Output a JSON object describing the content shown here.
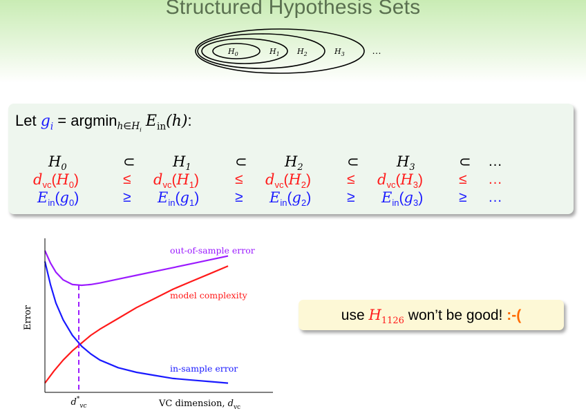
{
  "slide": {
    "title": "Structured Hypothesis Sets"
  },
  "nested_sets": {
    "labels": [
      "H0",
      "H1",
      "H2",
      "H3"
    ],
    "ellipsis": "…"
  },
  "definition": {
    "prefix": "Let",
    "text": "g_i = argmin_{h∈H_i} E_in(h):"
  },
  "chain": {
    "hyp": [
      "H0",
      "H1",
      "H2",
      "H3"
    ],
    "hyp_op": "⊂",
    "dvc": [
      "dvc(H0)",
      "dvc(H1)",
      "dvc(H2)",
      "dvc(H3)"
    ],
    "dvc_op": "≤",
    "ein": [
      "Ein(g0)",
      "Ein(g1)",
      "Ein(g2)",
      "Ein(g3)"
    ],
    "ein_op": "≥",
    "ellipsis": "…"
  },
  "chart_data": {
    "type": "line",
    "ylabel": "Error",
    "xlabel": "VC dimension, dvc",
    "x_marker_label": "d*vc",
    "series": [
      {
        "name": "out-of-sample error",
        "color": "#9b1aff",
        "x": [
          0.0,
          0.03,
          0.06,
          0.1,
          0.15,
          0.2,
          0.25,
          0.3,
          0.4,
          0.5,
          0.6,
          0.7,
          0.8,
          0.9,
          1.0
        ],
        "y": [
          0.92,
          0.84,
          0.78,
          0.73,
          0.7,
          0.695,
          0.7,
          0.71,
          0.735,
          0.76,
          0.785,
          0.81,
          0.835,
          0.86,
          0.885
        ]
      },
      {
        "name": "model complexity",
        "color": "#ff1a1a",
        "x": [
          0.0,
          0.05,
          0.1,
          0.15,
          0.2,
          0.25,
          0.3,
          0.4,
          0.5,
          0.6,
          0.7,
          0.8,
          0.9,
          1.0
        ],
        "y": [
          0.06,
          0.14,
          0.21,
          0.27,
          0.32,
          0.37,
          0.41,
          0.48,
          0.55,
          0.61,
          0.67,
          0.72,
          0.77,
          0.82
        ]
      },
      {
        "name": "in-sample error",
        "color": "#1a1aff",
        "x": [
          0.0,
          0.03,
          0.06,
          0.1,
          0.15,
          0.2,
          0.25,
          0.3,
          0.4,
          0.5,
          0.6,
          0.7,
          0.8,
          0.9,
          1.0
        ],
        "y": [
          0.85,
          0.7,
          0.58,
          0.47,
          0.37,
          0.3,
          0.25,
          0.21,
          0.16,
          0.13,
          0.11,
          0.09,
          0.08,
          0.07,
          0.06
        ]
      }
    ],
    "optimum_x": 0.185,
    "xlim": [
      0,
      1
    ],
    "ylim": [
      0,
      1
    ],
    "grid": false
  },
  "note": {
    "prefix": "use",
    "hyp": "H",
    "hyp_sub": "1126",
    "suffix": "won’t be good!",
    "face": ":-("
  }
}
